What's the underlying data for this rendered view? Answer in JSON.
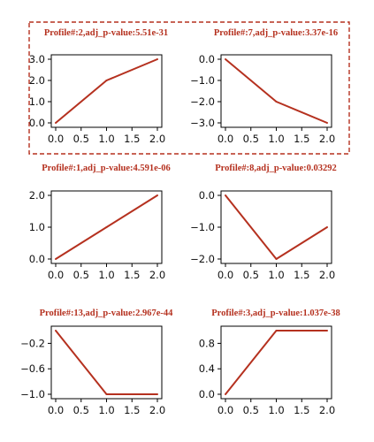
{
  "colors": {
    "series": "#b5311f",
    "highlight_box": "#b5311f",
    "axes": "#000000"
  },
  "highlight_group": [
    "profile-2",
    "profile-7"
  ],
  "chart_data": [
    {
      "type": "line",
      "title": "Profile#:2,adj_p-value:5.51e-31",
      "x": [
        0,
        1,
        2
      ],
      "values": [
        0,
        2,
        3
      ],
      "xlim": [
        0,
        2
      ],
      "ylim": [
        0,
        3
      ],
      "xticks": [
        0,
        0.5,
        1,
        1.5,
        2
      ],
      "xtick_labels": [
        "0.0",
        "0.5",
        "1.0",
        "1.5",
        "2.0"
      ],
      "yticks": [
        0,
        1,
        2,
        3
      ],
      "ytick_labels": [
        "0.0",
        "1.0",
        "2.0",
        "3.0"
      ]
    },
    {
      "type": "line",
      "title": "Profile#:7,adj_p-value:3.37e-16",
      "x": [
        0,
        1,
        2
      ],
      "values": [
        0,
        -2,
        -3
      ],
      "xlim": [
        0,
        2
      ],
      "ylim": [
        -3,
        0
      ],
      "xticks": [
        0,
        0.5,
        1,
        1.5,
        2
      ],
      "xtick_labels": [
        "0.0",
        "0.5",
        "1.0",
        "1.5",
        "2.0"
      ],
      "yticks": [
        0,
        -1,
        -2,
        -3
      ],
      "ytick_labels": [
        "0.0",
        "−1.0",
        "−2.0",
        "−3.0"
      ]
    },
    {
      "type": "line",
      "title": "Profile#:1,adj_p-value:4.591e-06",
      "x": [
        0,
        1,
        2
      ],
      "values": [
        0,
        1,
        2
      ],
      "xlim": [
        0,
        2
      ],
      "ylim": [
        0,
        2
      ],
      "xticks": [
        0,
        0.5,
        1,
        1.5,
        2
      ],
      "xtick_labels": [
        "0.0",
        "0.5",
        "1.0",
        "1.5",
        "2.0"
      ],
      "yticks": [
        0,
        1,
        2
      ],
      "ytick_labels": [
        "0.0",
        "1.0",
        "2.0"
      ]
    },
    {
      "type": "line",
      "title": "Profile#:8,adj_p-value:0.03292",
      "x": [
        0,
        1,
        2
      ],
      "values": [
        0,
        -2,
        -1
      ],
      "xlim": [
        0,
        2
      ],
      "ylim": [
        -2,
        0
      ],
      "xticks": [
        0,
        0.5,
        1,
        1.5,
        2
      ],
      "xtick_labels": [
        "0.0",
        "0.5",
        "1.0",
        "1.5",
        "2.0"
      ],
      "yticks": [
        0,
        -1,
        -2
      ],
      "ytick_labels": [
        "0.0",
        "−1.0",
        "−2.0"
      ]
    },
    {
      "type": "line",
      "title": "Profile#:13,adj_p-value:2.967e-44",
      "x": [
        0,
        1,
        2
      ],
      "values": [
        0,
        -1,
        -1
      ],
      "xlim": [
        0,
        2
      ],
      "ylim": [
        -1,
        0
      ],
      "xticks": [
        0,
        0.5,
        1,
        1.5,
        2
      ],
      "xtick_labels": [
        "0.0",
        "0.5",
        "1.0",
        "1.5",
        "2.0"
      ],
      "yticks": [
        -0.2,
        -0.6,
        -1.0
      ],
      "ytick_labels": [
        "−0.2",
        "−0.6",
        "−1.0"
      ]
    },
    {
      "type": "line",
      "title": "Profile#:3,adj_p-value:1.037e-38",
      "x": [
        0,
        1,
        2
      ],
      "values": [
        0,
        1,
        1
      ],
      "xlim": [
        0,
        2
      ],
      "ylim": [
        0,
        1
      ],
      "xticks": [
        0,
        0.5,
        1,
        1.5,
        2
      ],
      "xtick_labels": [
        "0.0",
        "0.5",
        "1.0",
        "1.5",
        "2.0"
      ],
      "yticks": [
        0,
        0.4,
        0.8
      ],
      "ytick_labels": [
        "0.0",
        "0.4",
        "0.8"
      ]
    }
  ]
}
